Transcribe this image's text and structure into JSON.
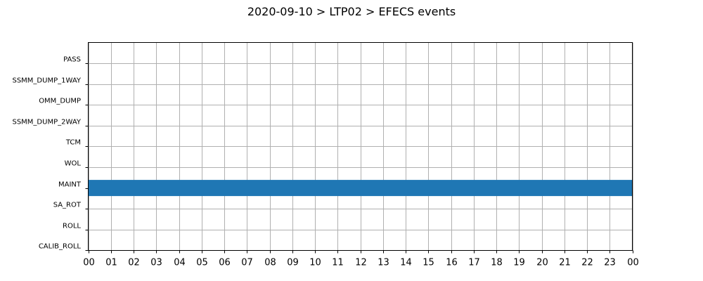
{
  "chart_data": {
    "type": "timeline",
    "title": "2020-09-10 > LTP02 > EFECS events",
    "xlabel": "",
    "ylabel": "",
    "x_ticks": [
      "00",
      "01",
      "02",
      "03",
      "04",
      "05",
      "06",
      "07",
      "08",
      "09",
      "10",
      "11",
      "12",
      "13",
      "14",
      "15",
      "16",
      "17",
      "18",
      "19",
      "20",
      "21",
      "22",
      "23",
      "00"
    ],
    "xlim_hours": [
      0,
      24
    ],
    "categories": [
      "PASS",
      "SSMM_DUMP_1WAY",
      "OMM_DUMP",
      "SSMM_DUMP_2WAY",
      "TCM",
      "WOL",
      "MAINT",
      "SA_ROT",
      "ROLL",
      "CALIB_ROLL"
    ],
    "grid": true,
    "bar_color": "#1f77b4",
    "events": [
      {
        "category": "MAINT",
        "start_hour": 0,
        "end_hour": 24
      }
    ]
  }
}
